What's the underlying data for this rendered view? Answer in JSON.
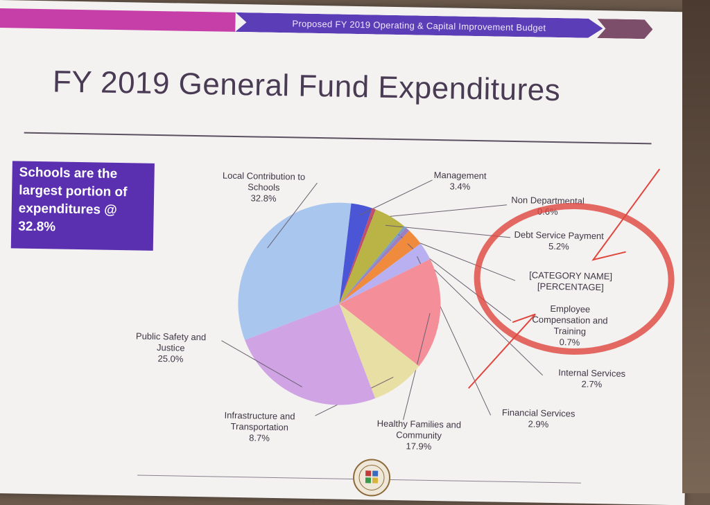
{
  "header": {
    "banner_text": "Proposed FY 2019 Operating & Capital Improvement Budget"
  },
  "title": "FY 2019 General Fund Expenditures",
  "callout": {
    "text": "Schools are the largest portion of expenditures @ 32.8%"
  },
  "chart_data": {
    "type": "pie",
    "title": "FY 2019 General Fund Expenditures",
    "slices": [
      {
        "name": "Local Contribution to Schools",
        "value": 32.8,
        "label_lines": [
          "Local Contribution to",
          "Schools"
        ],
        "pct": "32.8%",
        "color": "#a9c6ee"
      },
      {
        "name": "Management",
        "value": 3.4,
        "label_lines": [
          "Management"
        ],
        "pct": "3.4%",
        "color": "#4a56d6"
      },
      {
        "name": "Non Departmental",
        "value": 0.6,
        "label_lines": [
          "Non Departmental"
        ],
        "pct": "0.6%",
        "color": "#c0506a"
      },
      {
        "name": "Debt Service Payment",
        "value": 5.2,
        "label_lines": [
          "Debt Service Payment"
        ],
        "pct": "5.2%",
        "color": "#bab446"
      },
      {
        "name": "[CATEGORY NAME]",
        "value": 0.4,
        "label_lines": [
          "[CATEGORY NAME]"
        ],
        "pct": "[PERCENTAGE]",
        "color": "#7a9ec8"
      },
      {
        "name": "Employee Compensation and Training",
        "value": 0.7,
        "label_lines": [
          "Employee",
          "Compensation and",
          "Training"
        ],
        "pct": "0.7%",
        "color": "#9a80c0"
      },
      {
        "name": "Internal Services",
        "value": 2.7,
        "label_lines": [
          "Internal Services"
        ],
        "pct": "2.7%",
        "color": "#f08a3c"
      },
      {
        "name": "Financial Services",
        "value": 2.9,
        "label_lines": [
          "Financial Services"
        ],
        "pct": "2.9%",
        "color": "#b8b0f0"
      },
      {
        "name": "Healthy Families and Community",
        "value": 17.9,
        "label_lines": [
          "Healthy Families and",
          "Community"
        ],
        "pct": "17.9%",
        "color": "#f48e98"
      },
      {
        "name": "Infrastructure and Transportation",
        "value": 8.7,
        "label_lines": [
          "Infrastructure and",
          "Transportation"
        ],
        "pct": "8.7%",
        "color": "#e8dfa4"
      },
      {
        "name": "Public Safety and Justice",
        "value": 25.0,
        "label_lines": [
          "Public Safety and",
          "Justice"
        ],
        "pct": "25.0%",
        "color": "#d0a4e4"
      }
    ]
  },
  "annotation": {
    "color": "#e0453e"
  }
}
